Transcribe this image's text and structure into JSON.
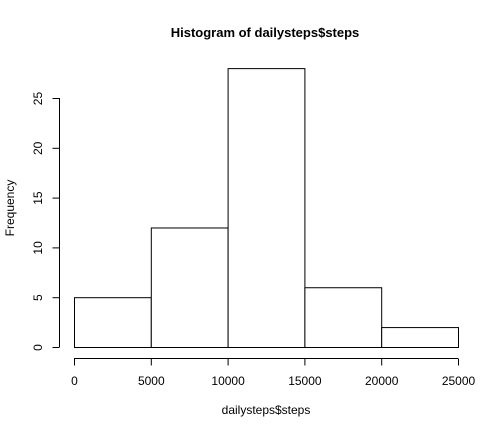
{
  "chart_data": {
    "type": "bar",
    "title": "Histogram of dailysteps$steps",
    "xlabel": "dailysteps$steps",
    "ylabel": "Frequency",
    "bins": [
      {
        "from": 0,
        "to": 5000,
        "value": 5
      },
      {
        "from": 5000,
        "to": 10000,
        "value": 12
      },
      {
        "from": 10000,
        "to": 15000,
        "value": 28
      },
      {
        "from": 15000,
        "to": 20000,
        "value": 6
      },
      {
        "from": 20000,
        "to": 25000,
        "value": 2
      }
    ],
    "xlim": [
      0,
      25000
    ],
    "ylim": [
      0,
      28
    ],
    "xticks": [
      0,
      5000,
      10000,
      15000,
      20000,
      25000
    ],
    "yticks": [
      0,
      5,
      10,
      15,
      20,
      25
    ],
    "grid": false,
    "bar_fill": "#ffffff",
    "bar_stroke": "#000000"
  }
}
